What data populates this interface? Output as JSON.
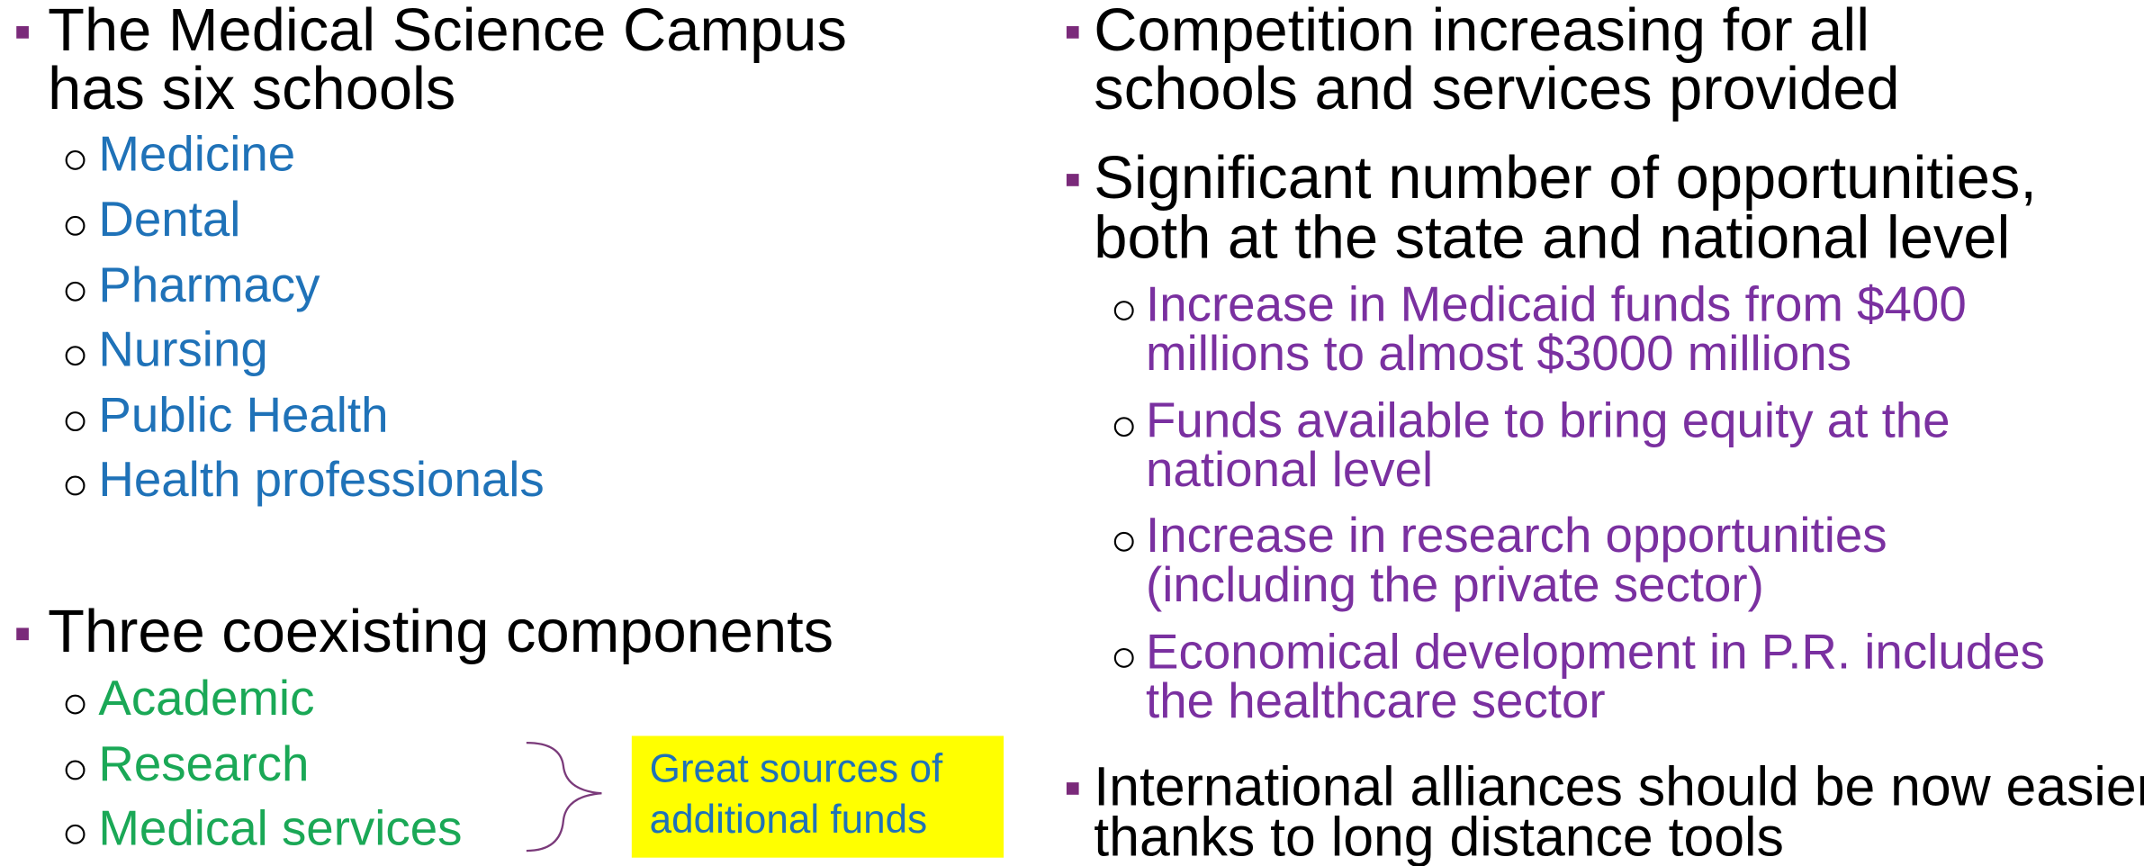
{
  "left": {
    "bullet1": {
      "lines": [
        "The Medical Science Campus",
        "has six schools"
      ],
      "items": [
        "Medicine",
        "Dental",
        "Pharmacy",
        "Nursing",
        "Public Health",
        "Health professionals"
      ]
    },
    "bullet2": {
      "lines": [
        "Three coexisting components"
      ],
      "items": [
        "Academic",
        "Research",
        "Medical services"
      ]
    },
    "note": {
      "lines": [
        "Great sources of",
        "additional funds"
      ]
    }
  },
  "right": {
    "bullet1": {
      "lines": [
        "Competition increasing for all",
        "schools and services provided"
      ]
    },
    "bullet2": {
      "lines": [
        "Significant number of opportunities,",
        "both at the state and national level"
      ],
      "items": [
        {
          "lines": [
            "Increase in Medicaid funds from $400",
            "millions to almost $3000 millions"
          ]
        },
        {
          "lines": [
            "Funds available to bring equity at the",
            "national level"
          ]
        },
        {
          "lines": [
            "Increase in research opportunities",
            "(including the private sector)"
          ]
        },
        {
          "lines": [
            "Economical development in P.R. includes",
            "the healthcare sector"
          ]
        }
      ]
    },
    "bullet3": {
      "lines": [
        "International alliances should be now easier",
        "thanks to long distance tools"
      ]
    }
  }
}
